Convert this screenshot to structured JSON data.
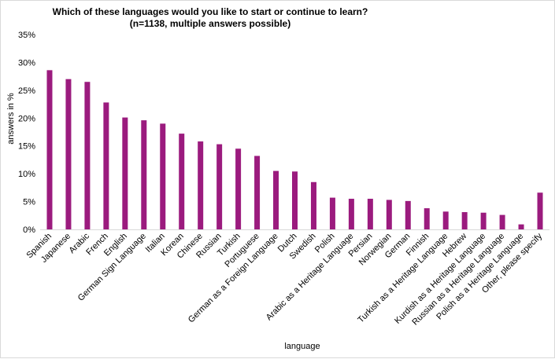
{
  "chart_data": {
    "type": "bar",
    "title": "Which of these languages would you like to start or continue to learn?",
    "subtitle": "(n=1138, multiple answers possible)",
    "xlabel": "language",
    "ylabel": "answers in %",
    "ylim": [
      0,
      35
    ],
    "yticks": [
      "0%",
      "5%",
      "10%",
      "15%",
      "20%",
      "25%",
      "30%",
      "35%"
    ],
    "grid": false,
    "bar_color": "#9b1b7e",
    "categories": [
      "Spanish",
      "Japanese",
      "Arabic",
      "French",
      "English",
      "German Sign Language",
      "Italian",
      "Korean",
      "Chinese",
      "Russian",
      "Turkish",
      "Portuguese",
      "German as a Foreign Language",
      "Dutch",
      "Swedish",
      "Polish",
      "Arabic as a Heritage Language",
      "Persian",
      "Norwegian",
      "German",
      "Finnish",
      "Turkish as a Heritage Language",
      "Hebrew",
      "Kurdish as a Heritage Language",
      "Russian as a Heritage Language",
      "Polish as a Heritage Language",
      "Other, please specify"
    ],
    "values": [
      28.6,
      27.0,
      26.5,
      22.8,
      20.1,
      19.6,
      19.0,
      17.2,
      15.8,
      15.3,
      14.5,
      13.2,
      10.5,
      10.4,
      8.5,
      5.7,
      5.5,
      5.5,
      5.3,
      5.1,
      3.8,
      3.2,
      3.1,
      3.0,
      2.6,
      0.9,
      6.6
    ]
  }
}
